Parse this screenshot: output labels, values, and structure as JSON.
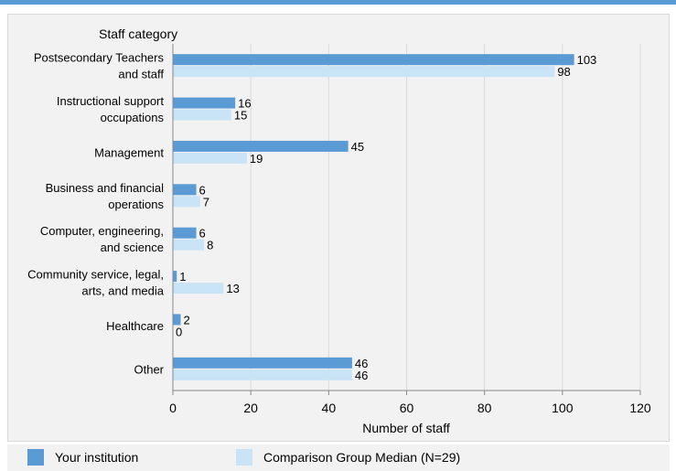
{
  "chart_data": {
    "type": "bar",
    "orientation": "horizontal",
    "y_title": "Staff category",
    "xlabel": "Number of staff",
    "xlim": [
      0,
      120
    ],
    "xticks": [
      0,
      20,
      40,
      60,
      80,
      100,
      120
    ],
    "grid": true,
    "categories": [
      [
        "Postsecondary Teachers",
        "and staff"
      ],
      [
        "Instructional support",
        "occupations"
      ],
      [
        "Management"
      ],
      [
        "Business and financial",
        "operations"
      ],
      [
        "Computer, engineering,",
        "and science"
      ],
      [
        "Community service, legal,",
        "arts, and media"
      ],
      [
        "Healthcare"
      ],
      [
        "Other"
      ]
    ],
    "series": [
      {
        "name": "Your institution",
        "color": "#5b9bd5",
        "values": [
          103,
          16,
          45,
          6,
          6,
          1,
          2,
          46
        ]
      },
      {
        "name": "Comparison Group Median (N=29)",
        "color": "#c9e4f7",
        "values": [
          98,
          15,
          19,
          7,
          8,
          13,
          0,
          46
        ]
      }
    ],
    "legend_position": "bottom"
  }
}
